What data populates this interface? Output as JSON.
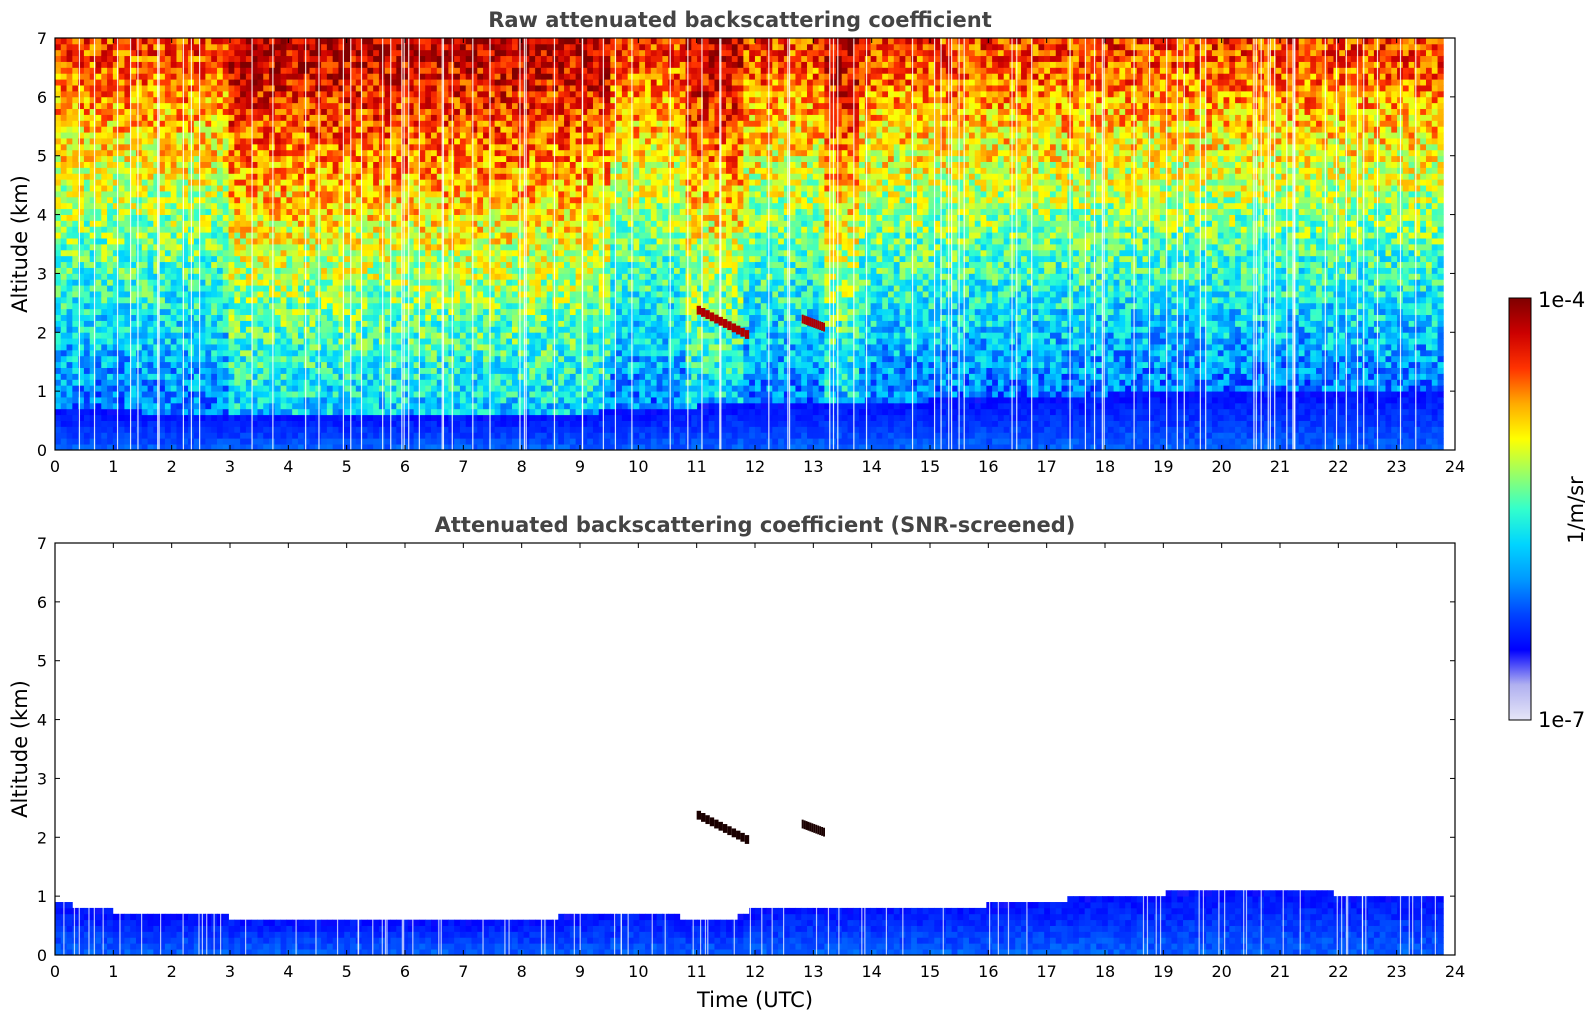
{
  "chart_data": [
    {
      "type": "heatmap",
      "title": "Raw attenuated backscattering coefficient",
      "xlabel": "",
      "ylabel": "Altitude (km)",
      "xlim": [
        0,
        24
      ],
      "ylim": [
        0,
        7
      ],
      "xticks": [
        "0",
        "1",
        "2",
        "3",
        "4",
        "5",
        "6",
        "7",
        "8",
        "9",
        "10",
        "11",
        "12",
        "13",
        "14",
        "15",
        "16",
        "17",
        "18",
        "19",
        "20",
        "21",
        "22",
        "23",
        "24"
      ],
      "yticks": [
        "0",
        "1",
        "2",
        "3",
        "4",
        "5",
        "6",
        "7"
      ],
      "data_end_hour": 23.8,
      "boundary_layer_top_km": [
        {
          "hour": 0,
          "km": 0.7
        },
        {
          "hour": 3,
          "km": 0.6
        },
        {
          "hour": 6,
          "km": 0.65
        },
        {
          "hour": 8,
          "km": 0.55
        },
        {
          "hour": 10,
          "km": 0.7
        },
        {
          "hour": 12,
          "km": 0.8
        },
        {
          "hour": 15,
          "km": 0.85
        },
        {
          "hour": 18,
          "km": 0.95
        },
        {
          "hour": 20,
          "km": 1.05
        },
        {
          "hour": 23.8,
          "km": 1.0
        }
      ],
      "noise_enhanced_periods_hours": [
        [
          3,
          9.5
        ],
        [
          10.8,
          11.8
        ],
        [
          13.2,
          13.8
        ]
      ],
      "aerosol_layers": [
        {
          "start_hour": 11.0,
          "end_hour": 11.9,
          "top_km": 2.45,
          "bottom_km": 2.0
        },
        {
          "start_hour": 12.8,
          "end_hour": 13.2,
          "top_km": 2.3,
          "bottom_km": 2.15
        }
      ]
    },
    {
      "type": "heatmap",
      "title": "Attenuated backscattering coefficient (SNR-screened)",
      "xlabel": "Time (UTC)",
      "ylabel": "Altitude (km)",
      "xlim": [
        0,
        24
      ],
      "ylim": [
        0,
        7
      ],
      "xticks": [
        "0",
        "1",
        "2",
        "3",
        "4",
        "5",
        "6",
        "7",
        "8",
        "9",
        "10",
        "11",
        "12",
        "13",
        "14",
        "15",
        "16",
        "17",
        "18",
        "19",
        "20",
        "21",
        "22",
        "23",
        "24"
      ],
      "yticks": [
        "0",
        "1",
        "2",
        "3",
        "4",
        "5",
        "6",
        "7"
      ],
      "data_end_hour": 23.8,
      "boundary_layer_top_km": [
        {
          "hour": 0,
          "km": 0.9
        },
        {
          "hour": 1,
          "km": 0.75
        },
        {
          "hour": 3,
          "km": 0.65
        },
        {
          "hour": 5,
          "km": 0.6
        },
        {
          "hour": 7,
          "km": 0.6
        },
        {
          "hour": 8,
          "km": 0.55
        },
        {
          "hour": 9,
          "km": 0.7
        },
        {
          "hour": 10,
          "km": 0.75
        },
        {
          "hour": 11.5,
          "km": 0.55
        },
        {
          "hour": 12,
          "km": 0.8
        },
        {
          "hour": 14,
          "km": 0.85
        },
        {
          "hour": 16,
          "km": 0.85
        },
        {
          "hour": 18,
          "km": 1.0
        },
        {
          "hour": 20,
          "km": 1.1
        },
        {
          "hour": 23.8,
          "km": 1.0
        }
      ],
      "aerosol_layers": [
        {
          "start_hour": 11.0,
          "end_hour": 11.9,
          "top_km": 2.45,
          "bottom_km": 2.0
        },
        {
          "start_hour": 12.8,
          "end_hour": 13.2,
          "top_km": 2.3,
          "bottom_km": 2.15
        }
      ]
    }
  ],
  "colorbar": {
    "max_label": "1e-4",
    "min_label": "1e-7",
    "unit_label": "1/m/sr",
    "colormap": [
      "#e6e6f8",
      "#b0b0f0",
      "#0000ff",
      "#0044ff",
      "#0099ff",
      "#00d5ff",
      "#33ffcc",
      "#99ff66",
      "#ffff00",
      "#ffaa00",
      "#ff3300",
      "#cc0000",
      "#7f0000"
    ]
  }
}
